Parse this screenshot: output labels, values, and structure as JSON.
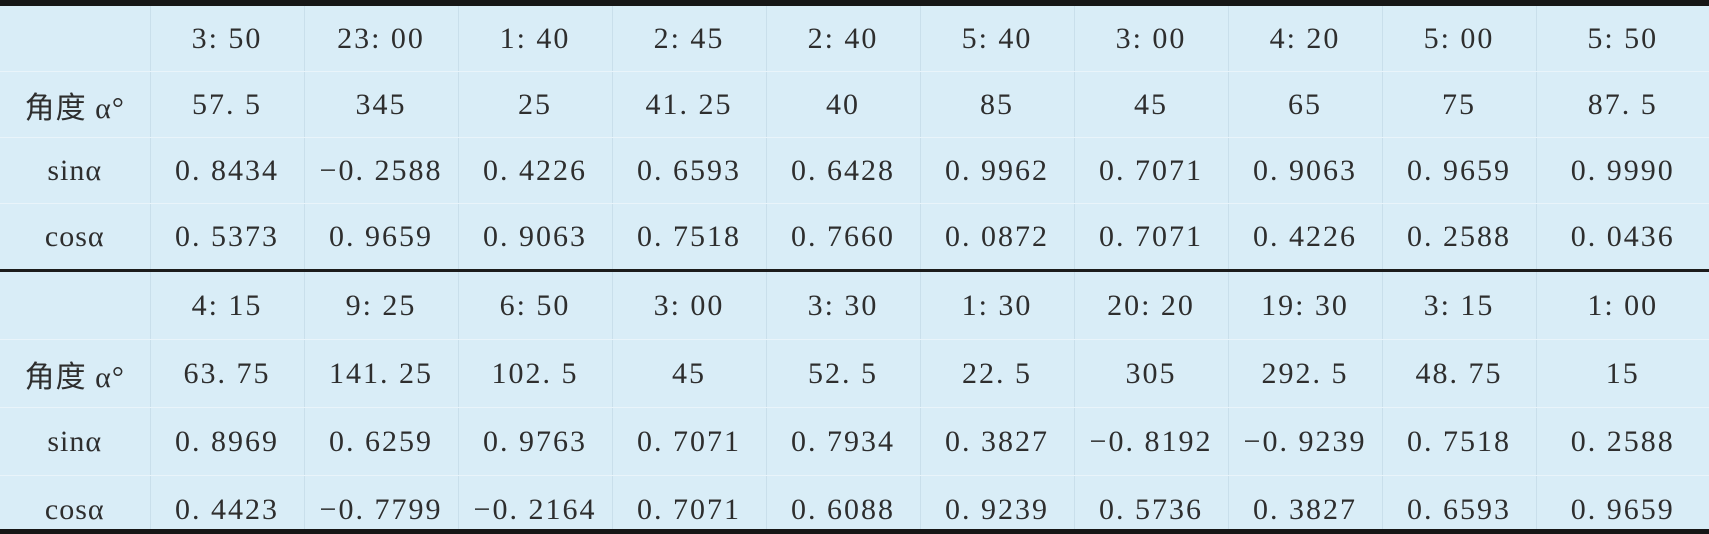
{
  "table": {
    "description_colors": {
      "background": "#d9edf7",
      "heavy_rule": "#161616",
      "text": "#2e2e2e",
      "grid_vertical": "#c9dfeb",
      "grid_horizontal": "#e9f4fa"
    },
    "sections": [
      {
        "rows": [
          {
            "label": "",
            "values": [
              "3: 50",
              "23: 00",
              "1: 40",
              "2: 45",
              "2: 40",
              "5: 40",
              "3: 00",
              "4: 20",
              "5: 00",
              "5: 50"
            ]
          },
          {
            "label": "角度 α°",
            "values": [
              "57. 5",
              "345",
              "25",
              "41. 25",
              "40",
              "85",
              "45",
              "65",
              "75",
              "87. 5"
            ]
          },
          {
            "label": "sinα",
            "values": [
              "0. 8434",
              "−0. 2588",
              "0. 4226",
              "0. 6593",
              "0. 6428",
              "0. 9962",
              "0. 7071",
              "0. 9063",
              "0. 9659",
              "0. 9990"
            ]
          },
          {
            "label": "cosα",
            "values": [
              "0. 5373",
              "0. 9659",
              "0. 9063",
              "0. 7518",
              "0. 7660",
              "0. 0872",
              "0. 7071",
              "0. 4226",
              "0. 2588",
              "0. 0436"
            ]
          }
        ]
      },
      {
        "rows": [
          {
            "label": "",
            "values": [
              "4: 15",
              "9: 25",
              "6: 50",
              "3: 00",
              "3: 30",
              "1: 30",
              "20: 20",
              "19: 30",
              "3: 15",
              "1: 00"
            ]
          },
          {
            "label": "角度 α°",
            "values": [
              "63. 75",
              "141. 25",
              "102. 5",
              "45",
              "52. 5",
              "22. 5",
              "305",
              "292. 5",
              "48. 75",
              "15"
            ]
          },
          {
            "label": "sinα",
            "values": [
              "0. 8969",
              "0. 6259",
              "0. 9763",
              "0. 7071",
              "0. 7934",
              "0. 3827",
              "−0. 8192",
              "−0. 9239",
              "0. 7518",
              "0. 2588"
            ]
          },
          {
            "label": "cosα",
            "values": [
              "0. 4423",
              "−0. 7799",
              "−0. 2164",
              "0. 7071",
              "0. 6088",
              "0. 9239",
              "0. 5736",
              "0. 3827",
              "0. 6593",
              "0. 9659"
            ]
          }
        ]
      }
    ]
  }
}
